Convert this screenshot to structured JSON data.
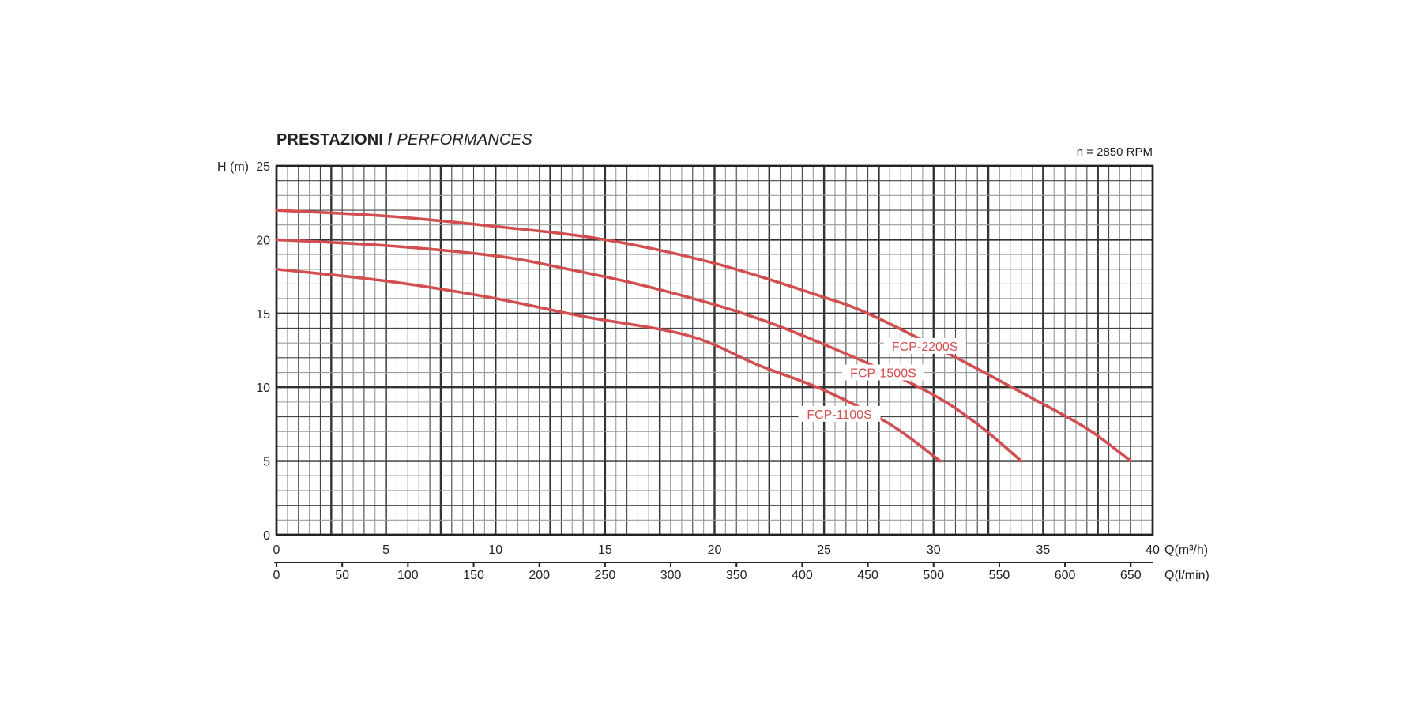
{
  "chart_data": {
    "type": "line",
    "title": "PRESTAZIONI",
    "subtitle": "PERFORMANCES",
    "annotation": "n = 2850 RPM",
    "ylabel": "H (m)",
    "xlabel": "Q(m³/h)",
    "x2label": "Q(l/min)",
    "xlim": [
      0,
      40
    ],
    "ylim": [
      0,
      25
    ],
    "x_ticks": [
      0,
      5,
      10,
      15,
      20,
      25,
      30,
      35,
      40
    ],
    "y_ticks": [
      0,
      5,
      10,
      15,
      20,
      25
    ],
    "x2_ticks": [
      0,
      50,
      100,
      150,
      200,
      250,
      300,
      350,
      400,
      450,
      500,
      550,
      600,
      650
    ],
    "grid": true,
    "color": "#d14f50",
    "series": [
      {
        "name": "FCP-2200S",
        "x": [
          0,
          5,
          10,
          15,
          20,
          25,
          27,
          30,
          34.2,
          37,
          39
        ],
        "y": [
          22,
          21.6,
          20.9,
          20,
          18.4,
          16.1,
          15,
          12.8,
          9.5,
          7.2,
          5
        ]
      },
      {
        "name": "FCP-1500S",
        "x": [
          0,
          5,
          10,
          13,
          17,
          21.3,
          25,
          29.6,
          32,
          34
        ],
        "y": [
          20,
          19.6,
          18.9,
          18.1,
          16.8,
          15,
          12.9,
          9.8,
          7.5,
          5
        ]
      },
      {
        "name": "FCP-1100S",
        "x": [
          0,
          5,
          9.7,
          14,
          18.8,
          22,
          25,
          28,
          30.3
        ],
        "y": [
          18,
          17.2,
          16.1,
          14.8,
          13.5,
          11.5,
          9.8,
          7.5,
          5
        ]
      }
    ]
  }
}
